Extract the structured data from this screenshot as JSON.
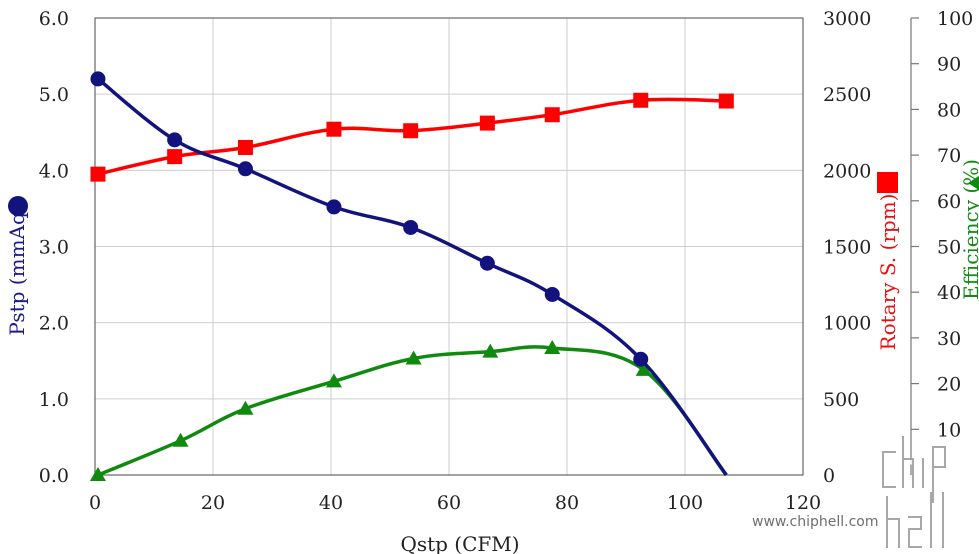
{
  "chart_data": {
    "type": "line",
    "title": "",
    "xlabel": "Qstp (CFM)",
    "xlim": [
      0,
      120
    ],
    "xticks": [
      "0",
      "20",
      "40",
      "60",
      "80",
      "100",
      "120"
    ],
    "grid": true,
    "axes": {
      "left": {
        "label": "Pstp (mmAq)",
        "ylim": [
          0,
          6
        ],
        "ticks": [
          "0.0",
          "1.0",
          "2.0",
          "3.0",
          "4.0",
          "5.0",
          "6.0"
        ],
        "color": "#1a1a8c"
      },
      "right1": {
        "label": "Rotary S. (rpm)",
        "ylim": [
          0,
          3000
        ],
        "ticks": [
          "0",
          "500",
          "1000",
          "1500",
          "2000",
          "2500",
          "3000"
        ],
        "color": "#e81010"
      },
      "right2": {
        "label": "Efficiency (%)",
        "ylim": [
          0,
          100
        ],
        "ticks": [
          "10",
          "20",
          "30",
          "40",
          "50",
          "60",
          "70",
          "80",
          "90",
          "100"
        ],
        "color": "#138a13"
      }
    },
    "series": [
      {
        "name": "Pstp",
        "axis": "left",
        "marker": "circle",
        "color": "#13137e",
        "x": [
          0.5,
          13.5,
          25.5,
          40.5,
          53.5,
          66.5,
          77.5,
          92.5,
          107
        ],
        "y": [
          5.2,
          4.4,
          4.02,
          3.52,
          3.25,
          2.78,
          2.37,
          1.52,
          0
        ]
      },
      {
        "name": "Rotary S.",
        "axis": "right1",
        "marker": "square",
        "color": "#ff0000",
        "x": [
          0.5,
          13.5,
          25.5,
          40.5,
          53.5,
          66.5,
          77.5,
          92.5,
          107
        ],
        "y": [
          1975,
          2090,
          2150,
          2270,
          2260,
          2310,
          2365,
          2460,
          2455
        ]
      },
      {
        "name": "Efficiency",
        "axis": "right2",
        "marker": "triangle",
        "color": "#0f8a0f",
        "x": [
          0.5,
          14.5,
          25.5,
          40.5,
          54,
          67,
          77.5,
          93,
          107
        ],
        "y": [
          0,
          7.5,
          14.5,
          20.5,
          25.5,
          27,
          27.8,
          23,
          0
        ]
      }
    ]
  },
  "watermark": {
    "logo_text": "chip hell",
    "url_text": "www.chiphell.com"
  }
}
